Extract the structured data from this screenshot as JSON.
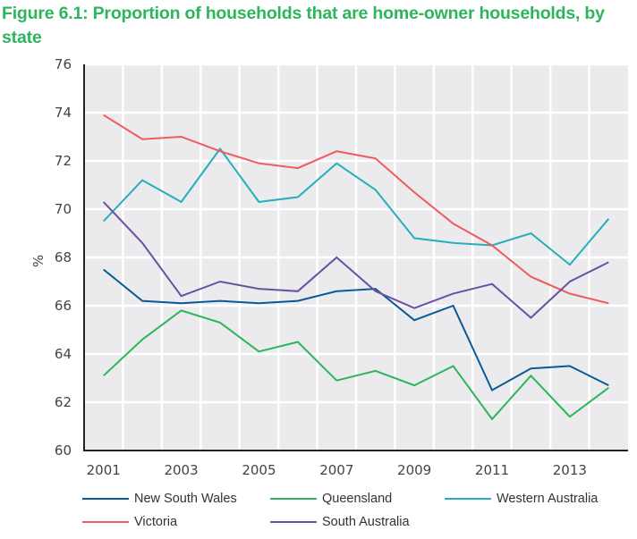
{
  "chart_data": {
    "type": "line",
    "title": "Figure 6.1: Proportion of households that are home-owner households, by state",
    "xlabel": "",
    "ylabel": "%",
    "x": [
      2001,
      2002,
      2003,
      2004,
      2005,
      2006,
      2007,
      2008,
      2009,
      2010,
      2011,
      2012,
      2013,
      2014
    ],
    "x_tick_labels": [
      "2001",
      "2003",
      "2005",
      "2007",
      "2009",
      "2011",
      "2013"
    ],
    "y_tick_labels": [
      "60",
      "62",
      "64",
      "66",
      "68",
      "70",
      "72",
      "74",
      "76"
    ],
    "ylim": [
      60,
      76
    ],
    "xlim": [
      2000.5,
      2014.5
    ],
    "grid": true,
    "legend_position": "bottom",
    "series": [
      {
        "name": "New South Wales",
        "color": "#0a5a96",
        "values": [
          67.5,
          66.2,
          66.1,
          66.2,
          66.1,
          66.2,
          66.6,
          66.7,
          65.4,
          66.0,
          62.5,
          63.4,
          63.5,
          62.7
        ]
      },
      {
        "name": "Queensland",
        "color": "#2db55d",
        "values": [
          63.1,
          64.6,
          65.8,
          65.3,
          64.1,
          64.5,
          62.9,
          63.3,
          62.7,
          63.5,
          61.3,
          63.1,
          61.4,
          62.6
        ]
      },
      {
        "name": "Western Australia",
        "color": "#27aebc",
        "values": [
          69.5,
          71.2,
          70.3,
          72.5,
          70.3,
          70.5,
          71.9,
          70.8,
          68.8,
          68.6,
          68.5,
          69.0,
          67.7,
          69.6
        ]
      },
      {
        "name": "Victoria",
        "color": "#ef5a5f",
        "values": [
          73.9,
          72.9,
          73.0,
          72.4,
          71.9,
          71.7,
          72.4,
          72.1,
          70.7,
          69.4,
          68.5,
          67.2,
          66.5,
          66.1
        ]
      },
      {
        "name": "South Australia",
        "color": "#6b4fa3",
        "values": [
          70.3,
          68.6,
          66.4,
          67.0,
          66.7,
          66.6,
          68.0,
          66.6,
          65.9,
          66.5,
          66.9,
          65.5,
          67.0,
          67.8
        ]
      }
    ]
  },
  "colors": {
    "title": "#2db55d",
    "plot_background": "#ebebed",
    "gridline": "#ffffff",
    "axis": "#222222"
  }
}
